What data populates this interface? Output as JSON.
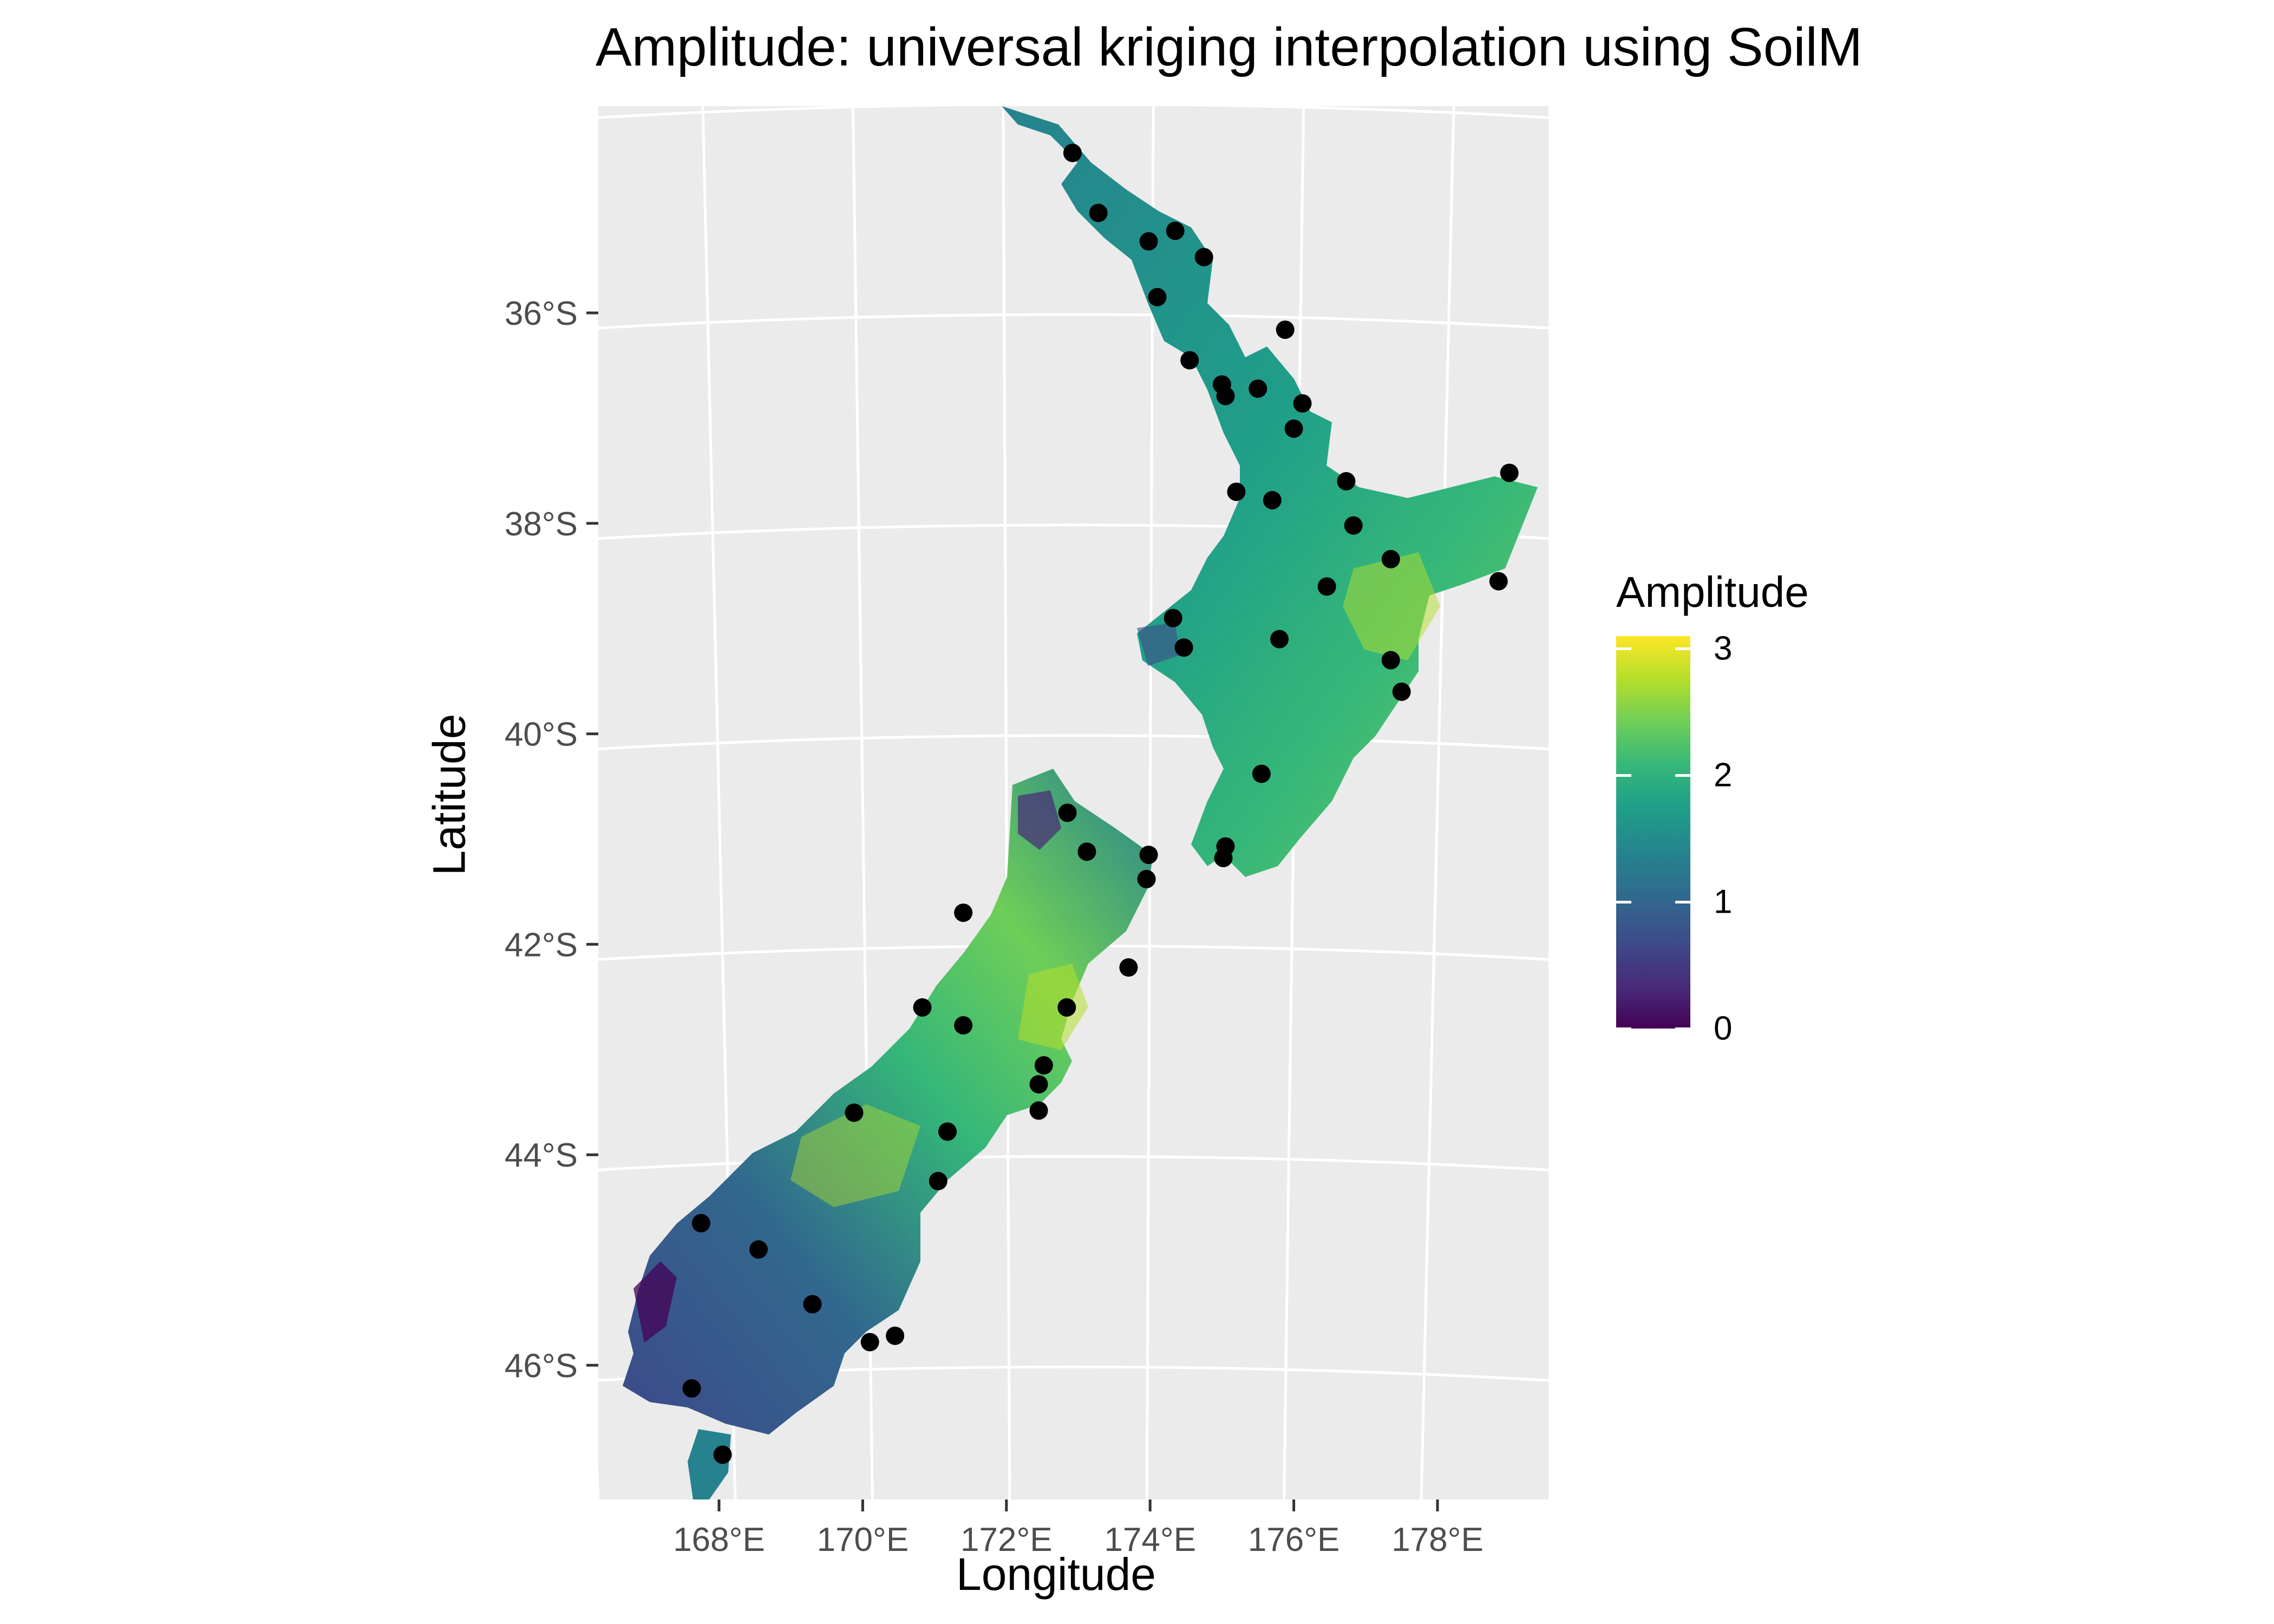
{
  "title": "Amplitude: universal kriging interpolation using SoilM",
  "axes": {
    "x_title": "Longitude",
    "y_title": "Latitude",
    "x_ticks": [
      "168°E",
      "170°E",
      "172°E",
      "174°E",
      "176°E",
      "178°E"
    ],
    "y_ticks": [
      "36°S",
      "38°S",
      "40°S",
      "42°S",
      "44°S",
      "46°S"
    ]
  },
  "legend": {
    "title": "Amplitude",
    "labels": [
      "3",
      "2",
      "1",
      "0"
    ],
    "range": [
      0,
      3.1
    ],
    "palette": [
      "#440154",
      "#482878",
      "#3e4989",
      "#31688e",
      "#26828e",
      "#1f9e89",
      "#35b779",
      "#6ece58",
      "#b5de2b",
      "#fde725"
    ]
  },
  "colors": {
    "panel_background": "#ebebeb",
    "grid": "#ffffff",
    "point": "#000000"
  },
  "map_data": {
    "extent": {
      "lon": [
        166.2,
        179.5
      ],
      "lat": [
        -47.3,
        -34.0
      ]
    },
    "stations": [
      [
        172.92,
        -34.48
      ],
      [
        173.28,
        -35.05
      ],
      [
        173.98,
        -35.32
      ],
      [
        174.35,
        -35.22
      ],
      [
        174.75,
        -35.47
      ],
      [
        174.1,
        -35.85
      ],
      [
        174.55,
        -36.45
      ],
      [
        175.0,
        -36.68
      ],
      [
        175.05,
        -36.79
      ],
      [
        175.5,
        -36.72
      ],
      [
        175.88,
        -36.16
      ],
      [
        176.12,
        -36.86
      ],
      [
        176.0,
        -37.1
      ],
      [
        175.2,
        -37.7
      ],
      [
        175.7,
        -37.78
      ],
      [
        176.73,
        -37.6
      ],
      [
        176.83,
        -38.02
      ],
      [
        177.35,
        -38.34
      ],
      [
        176.46,
        -38.6
      ],
      [
        175.8,
        -39.1
      ],
      [
        174.32,
        -38.9
      ],
      [
        174.47,
        -39.18
      ],
      [
        177.35,
        -39.3
      ],
      [
        177.5,
        -39.6
      ],
      [
        179.0,
        -37.52
      ],
      [
        178.85,
        -38.55
      ],
      [
        175.55,
        -40.38
      ],
      [
        175.05,
        -41.07
      ],
      [
        175.02,
        -41.18
      ],
      [
        172.85,
        -40.75
      ],
      [
        173.12,
        -41.12
      ],
      [
        173.98,
        -41.15
      ],
      [
        173.95,
        -41.38
      ],
      [
        171.4,
        -41.7
      ],
      [
        173.7,
        -42.22
      ],
      [
        170.83,
        -42.6
      ],
      [
        171.4,
        -42.77
      ],
      [
        172.84,
        -42.6
      ],
      [
        172.52,
        -43.15
      ],
      [
        172.45,
        -43.33
      ],
      [
        172.45,
        -43.58
      ],
      [
        169.88,
        -43.6
      ],
      [
        171.18,
        -43.78
      ],
      [
        171.05,
        -44.25
      ],
      [
        167.75,
        -44.65
      ],
      [
        168.55,
        -44.9
      ],
      [
        169.3,
        -45.42
      ],
      [
        170.1,
        -45.78
      ],
      [
        170.45,
        -45.72
      ],
      [
        167.62,
        -46.22
      ],
      [
        168.05,
        -46.85
      ]
    ]
  }
}
